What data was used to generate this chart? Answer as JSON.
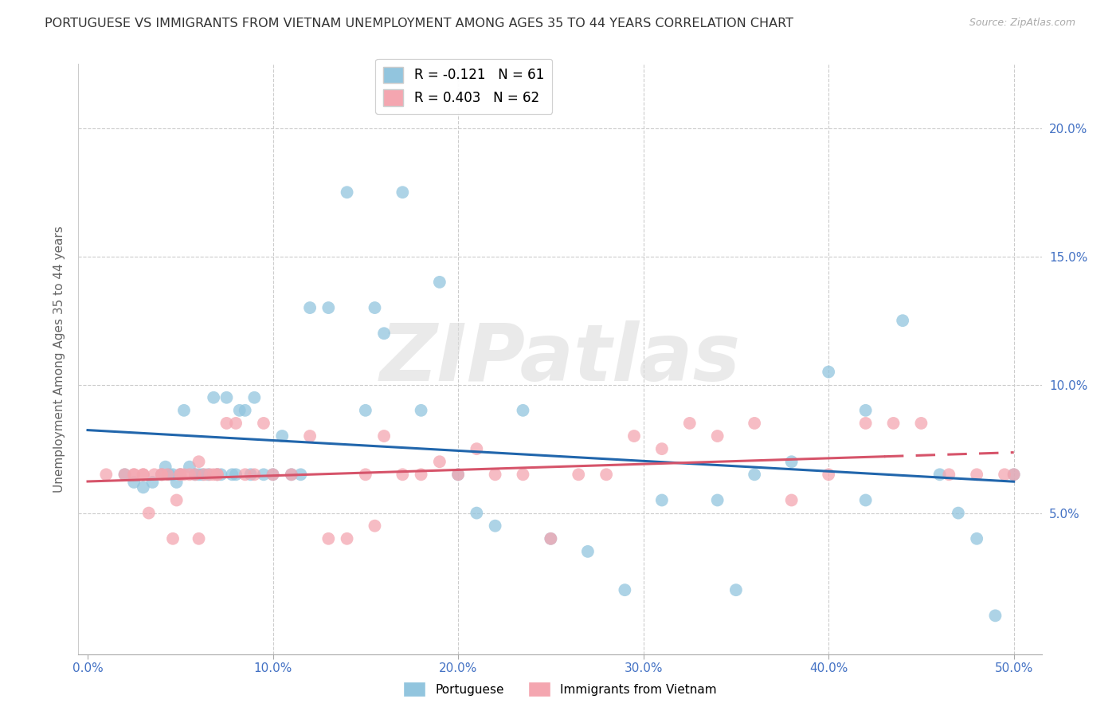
{
  "title": "PORTUGUESE VS IMMIGRANTS FROM VIETNAM UNEMPLOYMENT AMONG AGES 35 TO 44 YEARS CORRELATION CHART",
  "source": "Source: ZipAtlas.com",
  "ylabel": "Unemployment Among Ages 35 to 44 years",
  "xlim": [
    -0.005,
    0.515
  ],
  "ylim": [
    -0.005,
    0.225
  ],
  "yticks": [
    0.05,
    0.1,
    0.15,
    0.2
  ],
  "ytick_labels": [
    "5.0%",
    "10.0%",
    "15.0%",
    "20.0%"
  ],
  "xticks": [
    0.0,
    0.1,
    0.2,
    0.3,
    0.4,
    0.5
  ],
  "xtick_labels": [
    "0.0%",
    "10.0%",
    "20.0%",
    "30.0%",
    "40.0%",
    "50.0%"
  ],
  "blue_color": "#92c5de",
  "pink_color": "#f4a6b0",
  "line_blue_color": "#2166ac",
  "line_pink_color": "#d6546a",
  "watermark": "ZIPatlas",
  "title_fontsize": 11.5,
  "label_fontsize": 11,
  "tick_fontsize": 11,
  "tick_color": "#4472c4",
  "legend_text_blue": "R = -0.121   N = 61",
  "legend_text_pink": "R = 0.403   N = 62",
  "legend_label_portuguese": "Portuguese",
  "legend_label_vietnam": "Immigrants from Vietnam",
  "blue_x": [
    0.02,
    0.025,
    0.03,
    0.035,
    0.04,
    0.042,
    0.044,
    0.046,
    0.048,
    0.05,
    0.052,
    0.055,
    0.058,
    0.06,
    0.062,
    0.065,
    0.068,
    0.07,
    0.072,
    0.075,
    0.078,
    0.08,
    0.082,
    0.085,
    0.088,
    0.09,
    0.095,
    0.1,
    0.105,
    0.11,
    0.115,
    0.12,
    0.13,
    0.14,
    0.15,
    0.155,
    0.16,
    0.17,
    0.18,
    0.19,
    0.2,
    0.21,
    0.22,
    0.235,
    0.25,
    0.27,
    0.29,
    0.31,
    0.34,
    0.36,
    0.38,
    0.4,
    0.42,
    0.44,
    0.46,
    0.47,
    0.48,
    0.49,
    0.5,
    0.42,
    0.35
  ],
  "blue_y": [
    0.065,
    0.062,
    0.06,
    0.062,
    0.065,
    0.068,
    0.065,
    0.065,
    0.062,
    0.065,
    0.09,
    0.068,
    0.065,
    0.065,
    0.065,
    0.065,
    0.095,
    0.065,
    0.065,
    0.095,
    0.065,
    0.065,
    0.09,
    0.09,
    0.065,
    0.095,
    0.065,
    0.065,
    0.08,
    0.065,
    0.065,
    0.13,
    0.13,
    0.175,
    0.09,
    0.13,
    0.12,
    0.175,
    0.09,
    0.14,
    0.065,
    0.05,
    0.045,
    0.09,
    0.04,
    0.035,
    0.02,
    0.055,
    0.055,
    0.065,
    0.07,
    0.105,
    0.055,
    0.125,
    0.065,
    0.05,
    0.04,
    0.01,
    0.065,
    0.09,
    0.02
  ],
  "pink_x": [
    0.01,
    0.02,
    0.025,
    0.03,
    0.033,
    0.036,
    0.04,
    0.043,
    0.046,
    0.048,
    0.05,
    0.052,
    0.055,
    0.058,
    0.06,
    0.063,
    0.066,
    0.068,
    0.07,
    0.075,
    0.08,
    0.085,
    0.09,
    0.095,
    0.1,
    0.11,
    0.12,
    0.13,
    0.14,
    0.15,
    0.155,
    0.16,
    0.17,
    0.18,
    0.19,
    0.2,
    0.21,
    0.22,
    0.235,
    0.25,
    0.265,
    0.28,
    0.295,
    0.31,
    0.325,
    0.34,
    0.36,
    0.38,
    0.4,
    0.42,
    0.435,
    0.45,
    0.465,
    0.48,
    0.495,
    0.5,
    0.025,
    0.03,
    0.06,
    0.07,
    0.04,
    0.05
  ],
  "pink_y": [
    0.065,
    0.065,
    0.065,
    0.065,
    0.05,
    0.065,
    0.065,
    0.065,
    0.04,
    0.055,
    0.065,
    0.065,
    0.065,
    0.065,
    0.04,
    0.065,
    0.065,
    0.065,
    0.065,
    0.085,
    0.085,
    0.065,
    0.065,
    0.085,
    0.065,
    0.065,
    0.08,
    0.04,
    0.04,
    0.065,
    0.045,
    0.08,
    0.065,
    0.065,
    0.07,
    0.065,
    0.075,
    0.065,
    0.065,
    0.04,
    0.065,
    0.065,
    0.08,
    0.075,
    0.085,
    0.08,
    0.085,
    0.055,
    0.065,
    0.085,
    0.085,
    0.085,
    0.065,
    0.065,
    0.065,
    0.065,
    0.065,
    0.065,
    0.07,
    0.065,
    0.065,
    0.065
  ]
}
